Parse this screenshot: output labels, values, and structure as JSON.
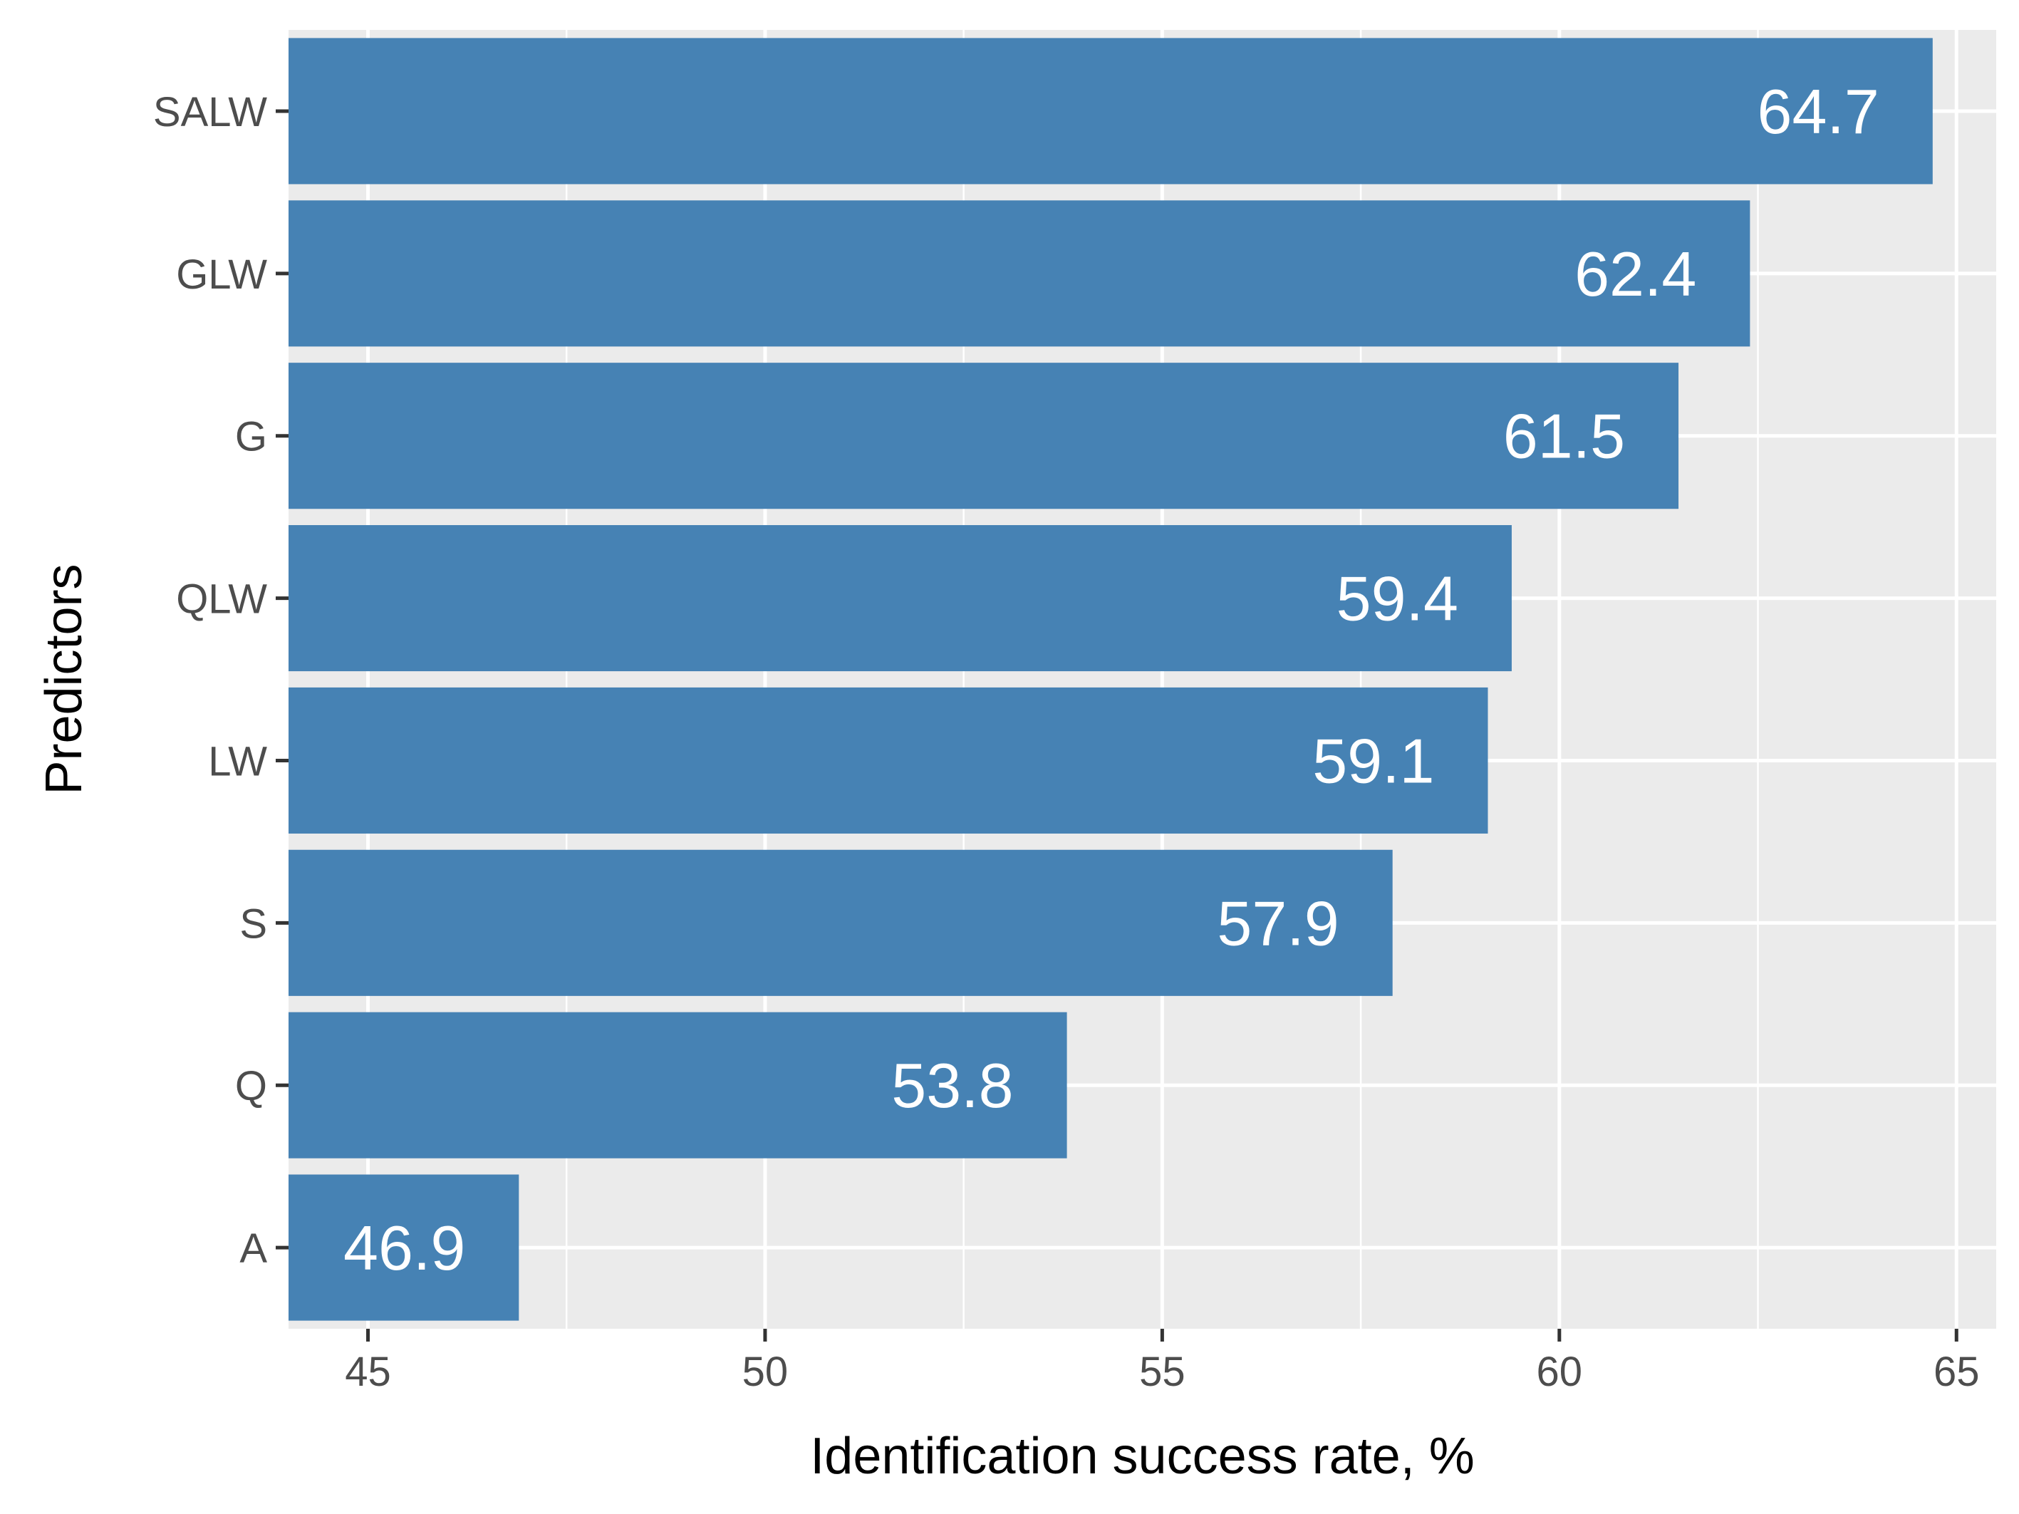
{
  "chart_data": {
    "type": "bar",
    "orientation": "horizontal",
    "xlabel": "Identification success rate, %",
    "ylabel": "Predictors",
    "xlim": [
      44,
      65.5
    ],
    "x_ticks": [
      "45",
      "50",
      "55",
      "60",
      "65"
    ],
    "categories": [
      "SALW",
      "GLW",
      "G",
      "QLW",
      "LW",
      "S",
      "Q",
      "A"
    ],
    "values": [
      64.7,
      62.4,
      61.5,
      59.4,
      59.1,
      57.9,
      53.8,
      46.9
    ],
    "data_labels": [
      "64.7",
      "62.4",
      "61.5",
      "59.4",
      "59.1",
      "57.9",
      "53.8",
      "46.9"
    ],
    "grid": true,
    "legend": "none"
  },
  "colors": {
    "bar": "#4682b4",
    "panel": "#ebebeb",
    "grid": "#ffffff",
    "tick_text": "#4d4d4d",
    "axis_title": "#000000",
    "bar_label": "#ffffff"
  }
}
